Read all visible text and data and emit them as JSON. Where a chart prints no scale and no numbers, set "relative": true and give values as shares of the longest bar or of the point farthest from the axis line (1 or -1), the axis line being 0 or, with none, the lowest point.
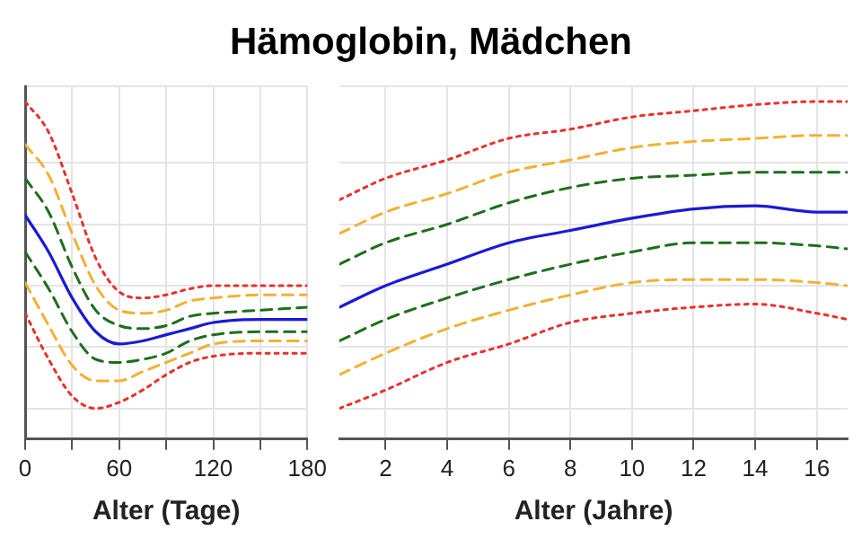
{
  "chart_data": [
    {
      "type": "line",
      "title": "Hämoglobin, Mädchen",
      "xlabel": "Alter (Tage)",
      "relative": true,
      "x": [
        0,
        15,
        30,
        45,
        60,
        75,
        90,
        105,
        120,
        150,
        180
      ],
      "xlim": [
        0,
        180
      ],
      "xticks": [
        0,
        {
          "value": 30,
          "label": null
        },
        60,
        {
          "value": 90,
          "label": null
        },
        120,
        {
          "value": 150,
          "label": null
        },
        180
      ],
      "tick_labels": "x",
      "grid": true,
      "legend": false,
      "marker": "none",
      "series": [
        {
          "color": "#e8312f",
          "line_style": "dotted",
          "values": [
            1.0,
            0.9,
            0.7,
            0.49,
            0.38,
            0.36,
            0.37,
            0.39,
            0.4,
            0.4,
            0.4
          ]
        },
        {
          "color": "#f2b134",
          "line_style": "dashed",
          "values": [
            0.86,
            0.76,
            0.57,
            0.4,
            0.32,
            0.31,
            0.32,
            0.35,
            0.36,
            0.37,
            0.37
          ]
        },
        {
          "color": "#1e6e1e",
          "line_style": "dashed",
          "values": [
            0.75,
            0.64,
            0.46,
            0.32,
            0.27,
            0.26,
            0.27,
            0.3,
            0.31,
            0.32,
            0.33
          ]
        },
        {
          "color": "#1a1ad6",
          "line_style": "solid",
          "values": [
            0.63,
            0.51,
            0.36,
            0.25,
            0.21,
            0.22,
            0.24,
            0.26,
            0.28,
            0.29,
            0.29
          ]
        },
        {
          "color": "#1e6e1e",
          "line_style": "dashed",
          "values": [
            0.51,
            0.39,
            0.25,
            0.16,
            0.15,
            0.16,
            0.18,
            0.22,
            0.24,
            0.25,
            0.25
          ]
        },
        {
          "color": "#f2b134",
          "line_style": "dashed",
          "values": [
            0.41,
            0.27,
            0.14,
            0.09,
            0.09,
            0.12,
            0.15,
            0.18,
            0.21,
            0.22,
            0.22
          ]
        },
        {
          "color": "#e8312f",
          "line_style": "dotted",
          "values": [
            0.31,
            0.16,
            0.04,
            0.0,
            0.02,
            0.06,
            0.11,
            0.15,
            0.17,
            0.18,
            0.18
          ]
        }
      ]
    },
    {
      "type": "line",
      "xlabel": "Alter (Jahre)",
      "relative": true,
      "x": [
        0.5,
        2,
        4,
        6,
        8,
        10,
        12,
        14,
        16,
        17
      ],
      "xlim": [
        0.5,
        17
      ],
      "xticks": [
        2,
        4,
        6,
        8,
        10,
        12,
        14,
        16
      ],
      "tick_labels": "x",
      "grid": true,
      "legend": false,
      "marker": "none",
      "series": [
        {
          "color": "#e8312f",
          "line_style": "dotted",
          "values": [
            0.68,
            0.75,
            0.81,
            0.88,
            0.91,
            0.95,
            0.97,
            0.99,
            1.0,
            1.0
          ]
        },
        {
          "color": "#f2b134",
          "line_style": "dashed",
          "values": [
            0.57,
            0.64,
            0.7,
            0.77,
            0.81,
            0.85,
            0.87,
            0.88,
            0.89,
            0.89
          ]
        },
        {
          "color": "#1e6e1e",
          "line_style": "dashed",
          "values": [
            0.47,
            0.54,
            0.6,
            0.67,
            0.72,
            0.75,
            0.76,
            0.77,
            0.77,
            0.77
          ]
        },
        {
          "color": "#1a1ad6",
          "line_style": "solid",
          "values": [
            0.33,
            0.4,
            0.47,
            0.54,
            0.58,
            0.62,
            0.65,
            0.66,
            0.64,
            0.64
          ]
        },
        {
          "color": "#1e6e1e",
          "line_style": "dashed",
          "values": [
            0.22,
            0.29,
            0.36,
            0.42,
            0.47,
            0.51,
            0.54,
            0.54,
            0.53,
            0.52
          ]
        },
        {
          "color": "#f2b134",
          "line_style": "dashed",
          "values": [
            0.11,
            0.18,
            0.26,
            0.32,
            0.37,
            0.41,
            0.42,
            0.42,
            0.41,
            0.4
          ]
        },
        {
          "color": "#e8312f",
          "line_style": "dotted",
          "values": [
            0.0,
            0.06,
            0.15,
            0.21,
            0.28,
            0.31,
            0.33,
            0.34,
            0.31,
            0.29
          ]
        }
      ]
    }
  ]
}
